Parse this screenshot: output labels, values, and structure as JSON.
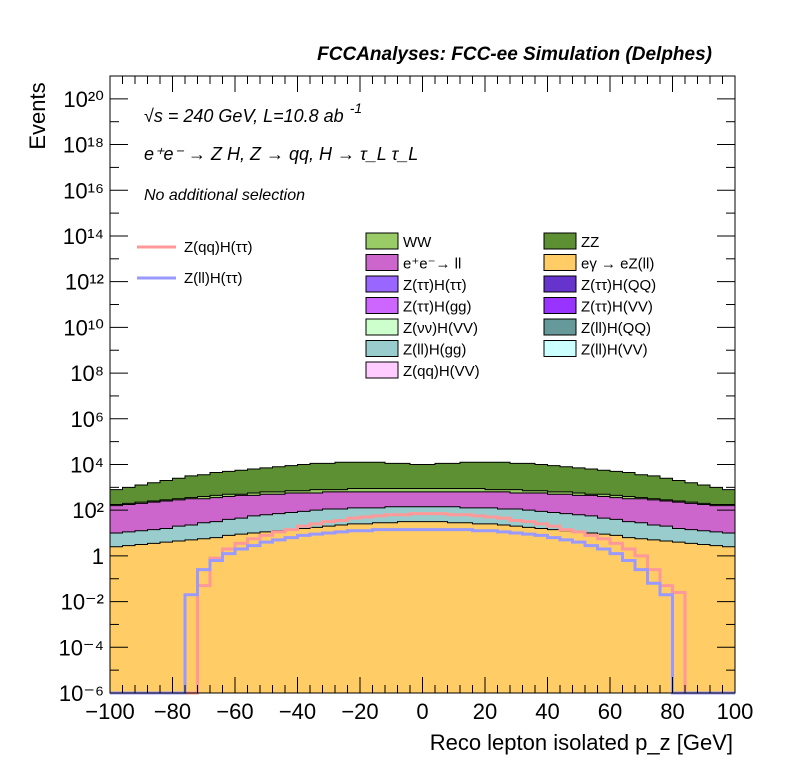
{
  "header": {
    "title": "FCCAnalyses: FCC-ee Simulation (Delphes)"
  },
  "annotations": {
    "energy": "√s = 240 GeV, L=10.8 ab",
    "energy_sup": "-1",
    "process": "e⁺e⁻ → Z H, Z → qq, H → τ_L τ_L",
    "selection": "No additional selection"
  },
  "chart_data": {
    "type": "histogram",
    "xlabel": "Reco lepton isolated p_z [GeV]",
    "ylabel": "Events",
    "xlim": [
      -100,
      100
    ],
    "ylim": [
      1e-06,
      1e+21
    ],
    "yscale": "log",
    "grid": false,
    "x_ticks": [
      "−100",
      "−80",
      "−60",
      "−40",
      "−20",
      "0",
      "20",
      "40",
      "60",
      "80",
      "100"
    ],
    "y_ticks": [
      "10⁻⁶",
      "10⁻⁴",
      "10⁻²",
      "1",
      "10²",
      "10⁴",
      "10⁶",
      "10⁸",
      "10¹⁰",
      "10¹²",
      "10¹⁴",
      "10¹⁶",
      "10¹⁸",
      "10²⁰"
    ],
    "bin_edges_range": [
      -100,
      100
    ],
    "n_bins": 50,
    "stack_order_bottom_to_top": [
      "eγ → eZ(ll)",
      "Z(νν)H(VV)",
      "Z(ττ)H(ττ)",
      "Z(ττ)H(gg)",
      "Z(ll)H(gg)",
      "e⁺e⁻→ ll",
      "WW",
      "ZZ"
    ],
    "stack_log10_tops": {
      "eγ → eZ(ll)": [
        0.4,
        0.45,
        0.5,
        0.55,
        0.6,
        0.65,
        0.7,
        0.75,
        0.8,
        0.9,
        0.95,
        1.0,
        1.05,
        1.1,
        1.15,
        1.2,
        1.25,
        1.3,
        1.35,
        1.4,
        1.4,
        1.45,
        1.45,
        1.5,
        1.5,
        1.5,
        1.5,
        1.45,
        1.45,
        1.4,
        1.4,
        1.35,
        1.3,
        1.25,
        1.2,
        1.15,
        1.1,
        1.05,
        1.0,
        0.95,
        0.9,
        0.8,
        0.75,
        0.7,
        0.65,
        0.6,
        0.55,
        0.5,
        0.45,
        0.4
      ],
      "Z(νν)H(VV)": [
        -9,
        -9,
        -9,
        -9,
        -1.5,
        -0.9,
        -0.4,
        -0.1,
        0.1,
        0.3,
        0.45,
        0.6,
        0.7,
        0.8,
        0.9,
        0.95,
        1.0,
        1.05,
        1.1,
        1.1,
        1.15,
        1.15,
        1.15,
        1.15,
        1.2,
        1.2,
        1.15,
        1.15,
        1.15,
        1.15,
        1.1,
        1.1,
        1.05,
        1.0,
        0.95,
        0.9,
        0.8,
        0.7,
        0.6,
        0.45,
        0.3,
        0.1,
        -0.1,
        -0.4,
        -0.9,
        -1.5,
        -9,
        -9,
        -9,
        -9
      ],
      "Z(ττ)H(ττ)": [
        -9,
        -9,
        -9,
        -9,
        -9,
        -9,
        -1.1,
        -0.85,
        -0.75,
        -0.7,
        -0.65,
        -0.6,
        -0.55,
        -0.5,
        -0.45,
        -0.4,
        -0.35,
        -0.3,
        -0.3,
        -0.25,
        -0.25,
        -0.2,
        -0.2,
        -0.2,
        -0.2,
        -0.2,
        -0.2,
        -0.2,
        -0.25,
        -0.25,
        -0.3,
        -0.3,
        -0.35,
        -0.4,
        -0.45,
        -0.5,
        -0.55,
        -0.6,
        -0.65,
        -0.7,
        -0.75,
        -1.3,
        -1.6,
        -1.5,
        -1.6,
        -1.4,
        -9,
        -9,
        -9,
        -9
      ],
      "Z(ττ)H(gg)": [
        -9,
        -9,
        -9,
        -9,
        -9,
        -9,
        -0.9,
        -0.6,
        -0.5,
        -0.45,
        -0.35,
        -0.3,
        -0.25,
        -0.2,
        -0.15,
        -0.1,
        -0.05,
        0.0,
        0.0,
        0.05,
        0.05,
        0.05,
        0.1,
        0.1,
        0.1,
        0.1,
        0.1,
        0.05,
        0.05,
        0.0,
        0.0,
        -0.05,
        -0.1,
        -0.15,
        -0.2,
        -0.25,
        -0.3,
        -0.35,
        -0.45,
        -0.5,
        -0.6,
        -0.9,
        -1.3,
        -1.2,
        -1.4,
        -1.2,
        -9,
        -9,
        -9,
        -9
      ],
      "Z(ll)H(gg)": [
        1.0,
        1.05,
        1.1,
        1.15,
        1.2,
        1.3,
        1.35,
        1.45,
        1.5,
        1.6,
        1.65,
        1.75,
        1.8,
        1.85,
        1.9,
        1.95,
        2.0,
        2.05,
        2.05,
        2.1,
        2.1,
        2.1,
        2.15,
        2.15,
        2.15,
        2.15,
        2.15,
        2.15,
        2.1,
        2.1,
        2.1,
        2.05,
        2.05,
        2.0,
        1.95,
        1.9,
        1.85,
        1.8,
        1.75,
        1.65,
        1.6,
        1.5,
        1.45,
        1.35,
        1.3,
        1.2,
        1.15,
        1.1,
        1.05,
        1.0
      ],
      "e⁺e⁻→ ll": [
        2.2,
        2.25,
        2.3,
        2.35,
        2.4,
        2.45,
        2.5,
        2.5,
        2.55,
        2.6,
        2.65,
        2.65,
        2.7,
        2.7,
        2.75,
        2.75,
        2.75,
        2.8,
        2.8,
        2.8,
        2.8,
        2.8,
        2.8,
        2.8,
        2.8,
        2.8,
        2.8,
        2.8,
        2.8,
        2.8,
        2.8,
        2.8,
        2.75,
        2.75,
        2.75,
        2.7,
        2.7,
        2.65,
        2.65,
        2.6,
        2.55,
        2.5,
        2.5,
        2.45,
        2.4,
        2.35,
        2.3,
        2.25,
        2.2,
        2.2
      ],
      "WW": [
        2.25,
        2.3,
        2.35,
        2.4,
        2.45,
        2.5,
        2.55,
        2.6,
        2.65,
        2.7,
        2.7,
        2.75,
        2.8,
        2.8,
        2.85,
        2.85,
        2.9,
        2.9,
        2.9,
        2.95,
        2.95,
        2.95,
        2.95,
        2.95,
        2.95,
        2.95,
        2.95,
        2.95,
        2.95,
        2.95,
        2.9,
        2.9,
        2.9,
        2.85,
        2.85,
        2.8,
        2.8,
        2.75,
        2.7,
        2.7,
        2.65,
        2.6,
        2.55,
        2.5,
        2.45,
        2.4,
        2.35,
        2.3,
        2.25,
        2.25
      ],
      "ZZ": [
        2.9,
        3.0,
        3.1,
        3.2,
        3.3,
        3.4,
        3.5,
        3.55,
        3.65,
        3.7,
        3.75,
        3.8,
        3.85,
        3.9,
        3.95,
        4.0,
        4.05,
        4.05,
        4.1,
        4.1,
        4.1,
        4.1,
        4.05,
        4.05,
        4.0,
        4.0,
        4.05,
        4.05,
        4.1,
        4.1,
        4.1,
        4.1,
        4.05,
        4.05,
        4.0,
        3.95,
        3.9,
        3.85,
        3.8,
        3.75,
        3.7,
        3.65,
        3.55,
        3.5,
        3.4,
        3.3,
        3.2,
        3.1,
        3.0,
        2.9
      ]
    },
    "signal_log10": {
      "Z(qq)H(ττ)": [
        -9,
        -9,
        -9,
        -9,
        -9,
        -9,
        -9,
        -1.3,
        -0.1,
        0.3,
        0.55,
        0.75,
        0.9,
        1.05,
        1.15,
        1.3,
        1.4,
        1.5,
        1.55,
        1.65,
        1.7,
        1.75,
        1.8,
        1.8,
        1.85,
        1.85,
        1.85,
        1.8,
        1.8,
        1.75,
        1.7,
        1.65,
        1.55,
        1.5,
        1.4,
        1.3,
        1.15,
        1.05,
        0.9,
        0.75,
        0.55,
        0.3,
        0.0,
        -0.6,
        -1.3,
        -1.6,
        -9,
        -9,
        -9,
        -9
      ],
      "Z(ll)H(ττ)": [
        -9,
        -9,
        -9,
        -9,
        -9,
        -9,
        -1.7,
        -0.6,
        -0.2,
        0.1,
        0.3,
        0.45,
        0.6,
        0.7,
        0.8,
        0.9,
        0.95,
        1.0,
        1.05,
        1.1,
        1.1,
        1.15,
        1.15,
        1.15,
        1.15,
        1.15,
        1.15,
        1.15,
        1.15,
        1.1,
        1.1,
        1.05,
        1.0,
        0.95,
        0.9,
        0.8,
        0.7,
        0.6,
        0.45,
        0.3,
        0.1,
        -0.2,
        -0.6,
        -1.2,
        -1.7,
        -9,
        -9,
        -9,
        -9,
        -9
      ]
    },
    "legend_lines": [
      {
        "name": "Z(qq)H(ττ)",
        "color": "#ff9999"
      },
      {
        "name": "Z(ll)H(ττ)",
        "color": "#9999ff"
      }
    ],
    "legend_fills": [
      {
        "name": "WW",
        "color": "#99cc66"
      },
      {
        "name": "ZZ",
        "color": "#5c9033"
      },
      {
        "name": "e⁺e⁻→ ll",
        "color": "#cc66cc"
      },
      {
        "name": "eγ → eZ(ll)",
        "color": "#ffcc66"
      },
      {
        "name": "Z(ττ)H(ττ)",
        "color": "#9966ff"
      },
      {
        "name": "Z(ττ)H(QQ)",
        "color": "#6633cc"
      },
      {
        "name": "Z(ττ)H(gg)",
        "color": "#cc66ff"
      },
      {
        "name": "Z(ττ)H(VV)",
        "color": "#9933ff"
      },
      {
        "name": "Z(νν)H(VV)",
        "color": "#ccffcc"
      },
      {
        "name": "Z(ll)H(QQ)",
        "color": "#669999"
      },
      {
        "name": "Z(ll)H(gg)",
        "color": "#99cccc"
      },
      {
        "name": "Z(ll)H(VV)",
        "color": "#ccffff"
      },
      {
        "name": "Z(qq)H(VV)",
        "color": "#ffccff"
      }
    ],
    "legend_placement": "top-right"
  }
}
